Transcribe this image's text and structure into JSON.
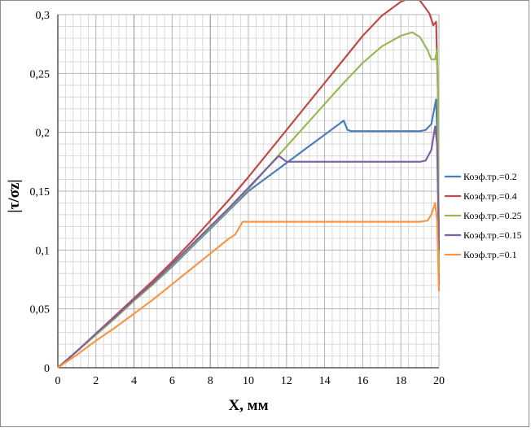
{
  "chart_data": {
    "type": "line",
    "xlabel": "X, мм",
    "ylabel": "|τ/σz|",
    "xlim": [
      0,
      20
    ],
    "ylim": [
      0,
      0.3
    ],
    "xticks": [
      "0",
      "2",
      "4",
      "6",
      "8",
      "10",
      "12",
      "14",
      "16",
      "18",
      "20"
    ],
    "yticks": [
      "0",
      "0,05",
      "0,1",
      "0,15",
      "0,2",
      "0,25",
      "0,3"
    ],
    "grid": true,
    "legend_position": "right",
    "series": [
      {
        "name": "Коэф.тр.=0.2",
        "color": "#4a7ebb",
        "points": [
          [
            0,
            0
          ],
          [
            0.5,
            0.007
          ],
          [
            1,
            0.014
          ],
          [
            2,
            0.028
          ],
          [
            3,
            0.042
          ],
          [
            4,
            0.057
          ],
          [
            5,
            0.071
          ],
          [
            6,
            0.086
          ],
          [
            7,
            0.102
          ],
          [
            8,
            0.118
          ],
          [
            9,
            0.134
          ],
          [
            10,
            0.15
          ],
          [
            10.5,
            0.156
          ],
          [
            11,
            0.162
          ],
          [
            11.5,
            0.168
          ],
          [
            12,
            0.174
          ],
          [
            12.5,
            0.18
          ],
          [
            13,
            0.186
          ],
          [
            14,
            0.198
          ],
          [
            15,
            0.21
          ],
          [
            15.2,
            0.202
          ],
          [
            15.4,
            0.201
          ],
          [
            16,
            0.201
          ],
          [
            17,
            0.201
          ],
          [
            18,
            0.201
          ],
          [
            19,
            0.201
          ],
          [
            19.3,
            0.202
          ],
          [
            19.6,
            0.207
          ],
          [
            19.85,
            0.228
          ],
          [
            19.95,
            0.18
          ],
          [
            20,
            0.085
          ]
        ]
      },
      {
        "name": "Коэф.тр.=0.4",
        "color": "#be4b48",
        "points": [
          [
            0,
            0
          ],
          [
            0.5,
            0.007
          ],
          [
            1,
            0.014
          ],
          [
            2,
            0.029
          ],
          [
            3,
            0.044
          ],
          [
            4,
            0.059
          ],
          [
            5,
            0.074
          ],
          [
            6,
            0.09
          ],
          [
            7,
            0.107
          ],
          [
            8,
            0.125
          ],
          [
            9,
            0.143
          ],
          [
            10,
            0.162
          ],
          [
            11,
            0.182
          ],
          [
            12,
            0.202
          ],
          [
            13,
            0.222
          ],
          [
            14,
            0.242
          ],
          [
            15,
            0.262
          ],
          [
            16,
            0.282
          ],
          [
            17,
            0.299
          ],
          [
            18,
            0.311
          ],
          [
            18.5,
            0.314
          ],
          [
            19,
            0.312
          ],
          [
            19.5,
            0.301
          ],
          [
            19.7,
            0.291
          ],
          [
            19.85,
            0.294
          ],
          [
            19.95,
            0.23
          ],
          [
            20,
            0.07
          ]
        ]
      },
      {
        "name": "Коэф.тр.=0.25",
        "color": "#98b954",
        "points": [
          [
            0,
            0
          ],
          [
            0.5,
            0.007
          ],
          [
            1,
            0.014
          ],
          [
            2,
            0.028
          ],
          [
            3,
            0.042
          ],
          [
            4,
            0.057
          ],
          [
            5,
            0.071
          ],
          [
            6,
            0.087
          ],
          [
            7,
            0.103
          ],
          [
            8,
            0.119
          ],
          [
            9,
            0.135
          ],
          [
            10,
            0.152
          ],
          [
            11,
            0.17
          ],
          [
            12,
            0.188
          ],
          [
            13,
            0.206
          ],
          [
            14,
            0.224
          ],
          [
            15,
            0.242
          ],
          [
            16,
            0.259
          ],
          [
            17,
            0.273
          ],
          [
            18,
            0.282
          ],
          [
            18.6,
            0.285
          ],
          [
            19,
            0.281
          ],
          [
            19.4,
            0.27
          ],
          [
            19.6,
            0.262
          ],
          [
            19.8,
            0.262
          ],
          [
            19.9,
            0.27
          ],
          [
            19.95,
            0.23
          ],
          [
            20,
            0.08
          ]
        ]
      },
      {
        "name": "Коэф.тр.=0.15",
        "color": "#7d60a0",
        "points": [
          [
            0,
            0
          ],
          [
            0.5,
            0.007
          ],
          [
            1,
            0.014
          ],
          [
            2,
            0.029
          ],
          [
            3,
            0.043
          ],
          [
            4,
            0.058
          ],
          [
            5,
            0.072
          ],
          [
            6,
            0.088
          ],
          [
            7,
            0.104
          ],
          [
            8,
            0.12
          ],
          [
            9,
            0.136
          ],
          [
            10,
            0.153
          ],
          [
            11,
            0.17
          ],
          [
            11.6,
            0.18
          ],
          [
            12,
            0.175
          ],
          [
            13,
            0.175
          ],
          [
            14,
            0.175
          ],
          [
            15,
            0.175
          ],
          [
            16,
            0.175
          ],
          [
            17,
            0.175
          ],
          [
            18,
            0.175
          ],
          [
            19,
            0.175
          ],
          [
            19.3,
            0.176
          ],
          [
            19.6,
            0.185
          ],
          [
            19.8,
            0.205
          ],
          [
            19.9,
            0.19
          ],
          [
            20,
            0.1
          ]
        ]
      },
      {
        "name": "Коэф.тр.=0.1",
        "color": "#f79646",
        "points": [
          [
            0,
            0
          ],
          [
            1,
            0.011
          ],
          [
            2,
            0.023
          ],
          [
            3,
            0.034
          ],
          [
            4,
            0.046
          ],
          [
            5,
            0.058
          ],
          [
            6,
            0.071
          ],
          [
            7,
            0.084
          ],
          [
            8,
            0.097
          ],
          [
            9,
            0.11
          ],
          [
            9.3,
            0.113
          ],
          [
            9.7,
            0.124
          ],
          [
            10,
            0.124
          ],
          [
            11,
            0.124
          ],
          [
            12,
            0.124
          ],
          [
            14,
            0.124
          ],
          [
            16,
            0.124
          ],
          [
            18,
            0.124
          ],
          [
            19,
            0.124
          ],
          [
            19.4,
            0.125
          ],
          [
            19.6,
            0.13
          ],
          [
            19.8,
            0.14
          ],
          [
            19.9,
            0.125
          ],
          [
            20,
            0.065
          ]
        ]
      }
    ]
  }
}
